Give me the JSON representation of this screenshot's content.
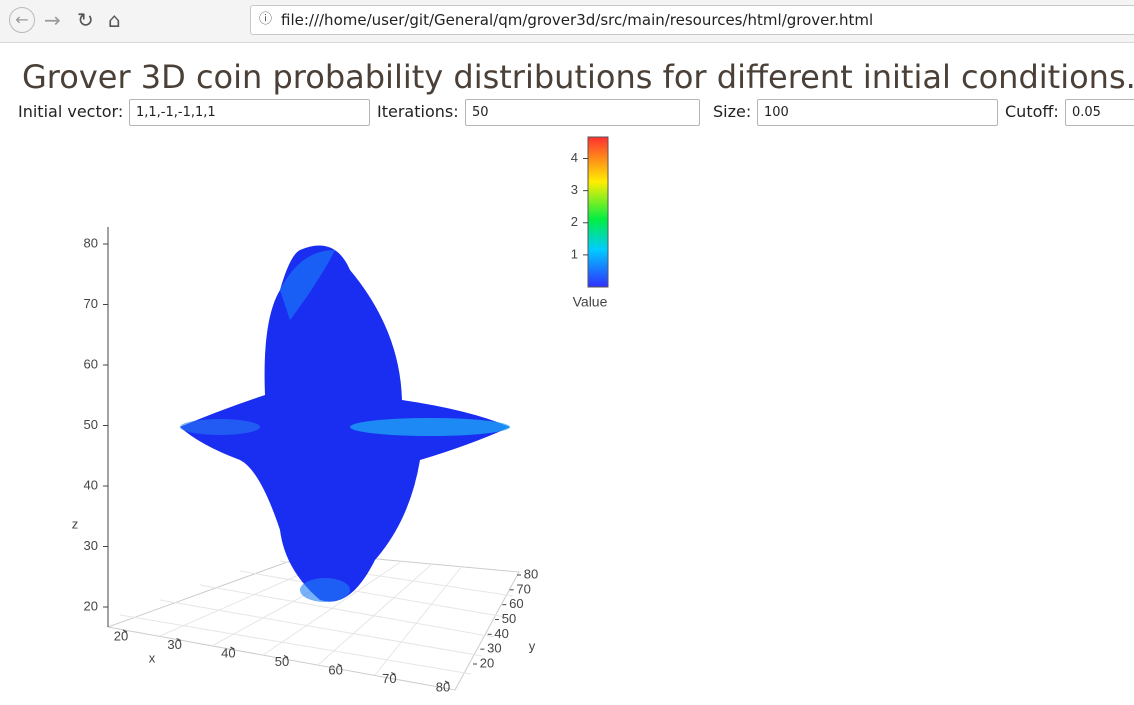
{
  "browser": {
    "url": "file:///home/user/git/General/qm/grover3d/src/main/resources/html/grover.html"
  },
  "page": {
    "title": "Grover 3D coin probability distributions for different initial conditions.",
    "controls": [
      {
        "label": "Initial vector:",
        "value": "1,1,-1,-1,1,1"
      },
      {
        "label": "Iterations:",
        "value": "50"
      },
      {
        "label": "Size:",
        "value": "100"
      },
      {
        "label": "Cutoff:",
        "value": "0.05"
      }
    ]
  },
  "chart_data": {
    "type": "scatter3d",
    "x_label": "x",
    "y_label": "y",
    "z_label": "z",
    "xticks": [
      20,
      30,
      40,
      50,
      60,
      70,
      80
    ],
    "yticks": [
      20,
      30,
      40,
      50,
      60,
      70,
      80
    ],
    "zticks": [
      20,
      30,
      40,
      50,
      60,
      70,
      80
    ],
    "colorbar": {
      "title": "Value",
      "ticks": [
        1,
        2,
        3,
        4
      ],
      "lim": [
        0,
        4.67
      ]
    }
  }
}
